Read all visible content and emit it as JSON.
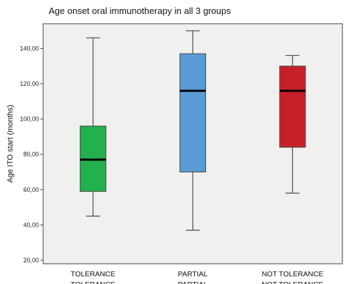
{
  "chart_data": {
    "type": "boxplot",
    "title": "Age onset oral immunotherapy in all 3 groups",
    "ylabel": "Age ITO start (months)",
    "xlabel": "",
    "ylim": [
      18,
      154
    ],
    "yticks": [
      20,
      40,
      60,
      80,
      100,
      120,
      140
    ],
    "ytick_labels": [
      "20,00",
      "40,00",
      "60,00",
      "80,00",
      "100,00",
      "120,00",
      "140,00"
    ],
    "grid": false,
    "categories": [
      "TOLERANCE",
      "PARTIAL",
      "NOT TOLERANCE"
    ],
    "categories_second_line": [
      "TOLERANCE",
      "PARTIAL",
      "NOT TOLERANCE"
    ],
    "boxes": [
      {
        "min": 45,
        "q1": 59,
        "median": 77,
        "q3": 96,
        "max": 146,
        "color": "#22b14c"
      },
      {
        "min": 37,
        "q1": 70,
        "median": 116,
        "q3": 137,
        "max": 150,
        "color": "#5b9bd5"
      },
      {
        "min": 58,
        "q1": 84,
        "median": 116,
        "q3": 130,
        "max": 136,
        "color": "#c8202a"
      }
    ]
  }
}
